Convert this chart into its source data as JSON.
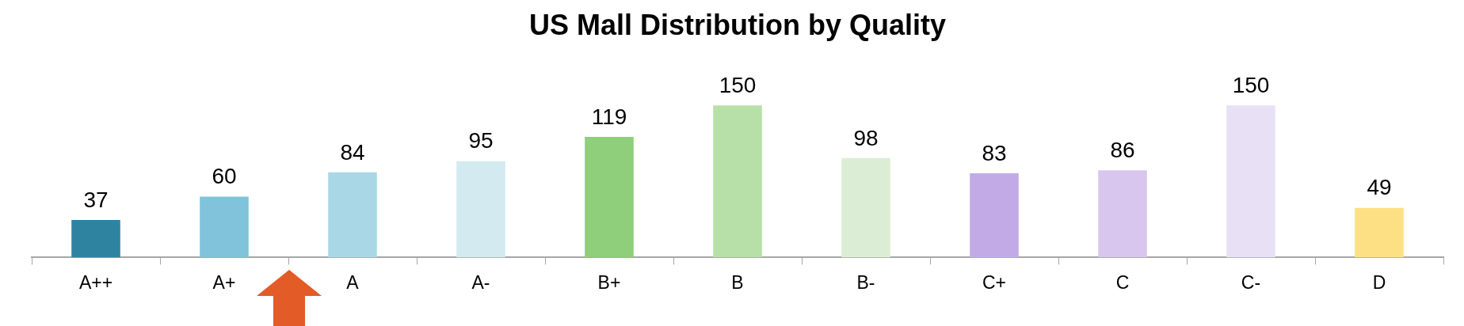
{
  "chart_data": {
    "type": "bar",
    "title": "US Mall Distribution by Quality",
    "categories": [
      "A++",
      "A+",
      "A",
      "A-",
      "B+",
      "B",
      "B-",
      "C+",
      "C",
      "C-",
      "D"
    ],
    "values": [
      37,
      60,
      84,
      95,
      119,
      150,
      98,
      83,
      86,
      150,
      49
    ],
    "colors": [
      "#2e83a0",
      "#80c3da",
      "#aad7e6",
      "#d4eaf1",
      "#8fce7a",
      "#b6e0a7",
      "#dbeed5",
      "#c2aae6",
      "#d8c6ee",
      "#e8e0f5",
      "#fde083"
    ],
    "data_labels": true,
    "legend": false,
    "grid": false
  }
}
